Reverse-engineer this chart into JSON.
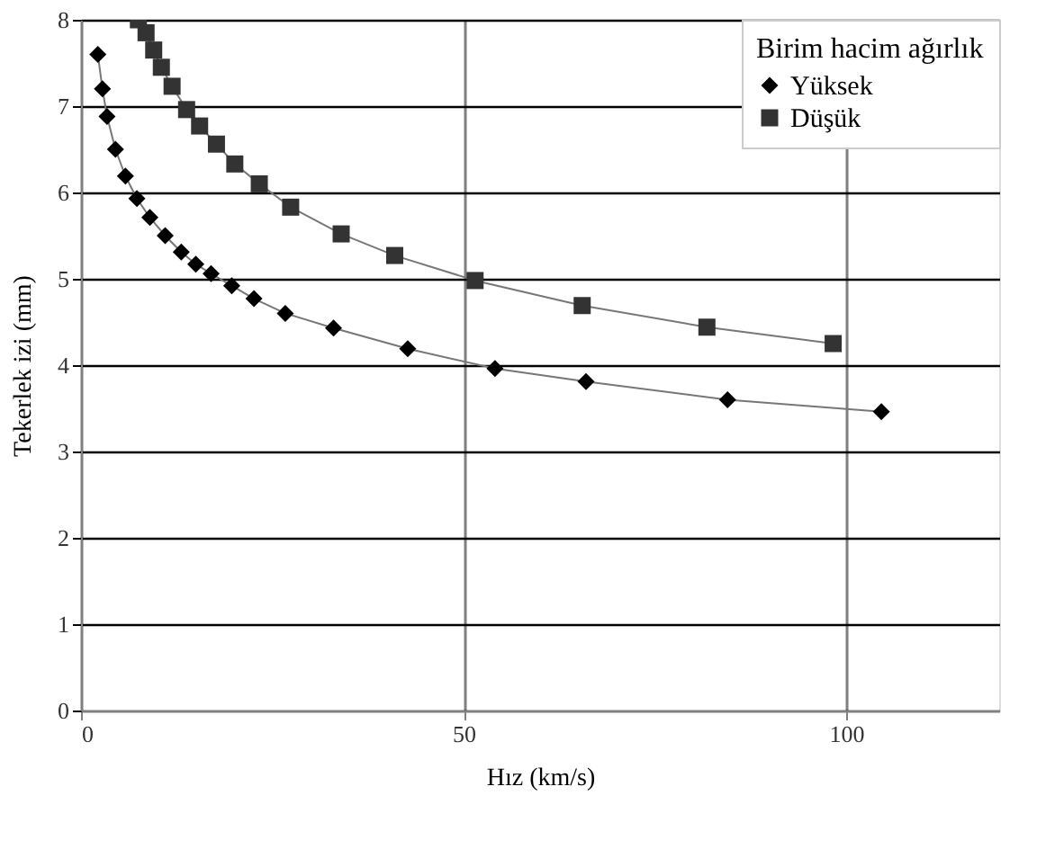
{
  "chart_data": {
    "type": "line",
    "xlabel": "Hız (km/s)",
    "ylabel": "Tekerlek izi (mm)",
    "legend_title": "Birim hacim ağırlık",
    "xlim": [
      0,
      120
    ],
    "xticks": [
      0,
      50,
      100
    ],
    "ylim": [
      0,
      8
    ],
    "yticks": [
      0,
      1,
      2,
      3,
      4,
      5,
      6,
      7,
      8
    ],
    "grid": true,
    "legend": "top right",
    "series": [
      {
        "name": "Yüksek",
        "color": "#000000",
        "marker": "diamond",
        "x": [
          2.2,
          2.8,
          3.4,
          4.5,
          5.8,
          7.3,
          9.0,
          11.0,
          13.1,
          15.0,
          17.0,
          19.7,
          22.6,
          26.7,
          33.0,
          42.7,
          54.1,
          66.0,
          84.5,
          104.6
        ],
        "values": [
          7.6,
          7.2,
          6.88,
          6.5,
          6.19,
          5.93,
          5.71,
          5.5,
          5.31,
          5.17,
          5.06,
          4.92,
          4.77,
          4.6,
          4.43,
          4.19,
          3.96,
          3.81,
          3.6,
          3.46
        ]
      },
      {
        "name": "Düşük",
        "color": "#333333",
        "marker": "square",
        "x": [
          7.5,
          8.5,
          9.5,
          10.5,
          11.9,
          13.8,
          15.5,
          17.7,
          20.1,
          23.3,
          27.4,
          34.0,
          41.0,
          51.5,
          65.5,
          81.8,
          98.3
        ],
        "values": [
          8.0,
          7.85,
          7.65,
          7.45,
          7.23,
          6.96,
          6.77,
          6.56,
          6.33,
          6.1,
          5.83,
          5.52,
          5.27,
          4.98,
          4.69,
          4.44,
          4.25
        ]
      }
    ]
  }
}
